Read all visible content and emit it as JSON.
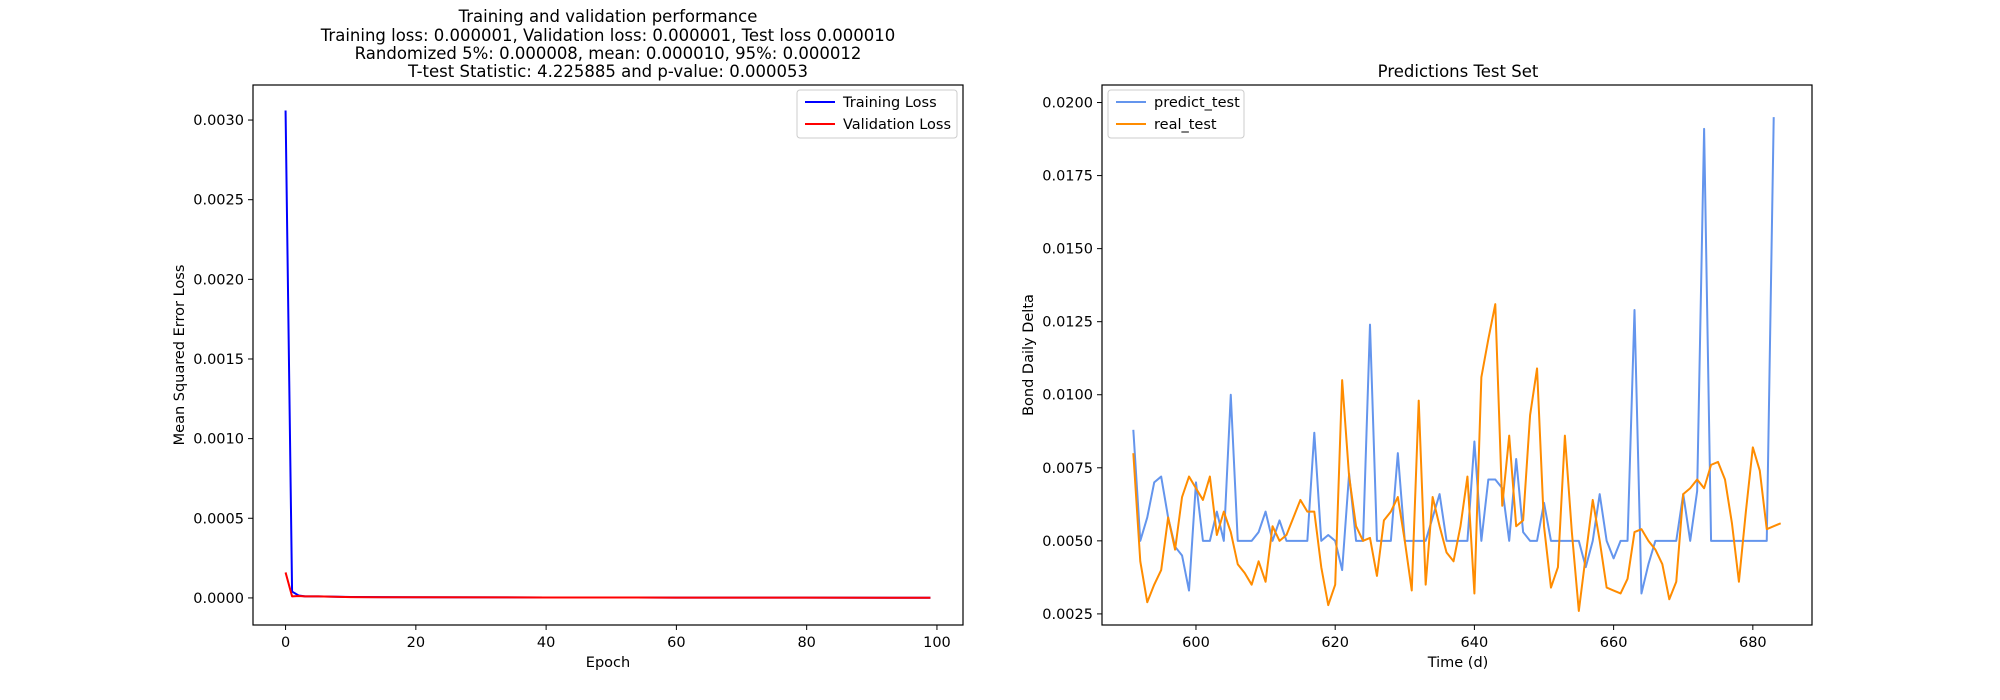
{
  "chart_data": [
    {
      "type": "line",
      "title_lines": [
        "Training and validation performance",
        "Training loss: 0.000001, Validation loss: 0.000001, Test loss 0.000010",
        "Randomized 5%: 0.000008, mean: 0.000010, 95%: 0.000012",
        "T-test Statistic: 4.225885 and p-value: 0.000053"
      ],
      "xlabel": "Epoch",
      "ylabel": "Mean Squared Error Loss",
      "xlim": [
        -5,
        104
      ],
      "ylim": [
        -0.00017,
        0.00322
      ],
      "xticks": [
        0,
        20,
        40,
        60,
        80,
        100
      ],
      "xtick_labels": [
        "0",
        "20",
        "40",
        "60",
        "80",
        "100"
      ],
      "yticks": [
        0.0,
        0.0005,
        0.001,
        0.0015,
        0.002,
        0.0025,
        0.003
      ],
      "ytick_labels": [
        "0.0000",
        "0.0005",
        "0.0010",
        "0.0015",
        "0.0020",
        "0.0025",
        "0.0030"
      ],
      "legend_position": "upper-right",
      "grid": false,
      "series": [
        {
          "name": "Training Loss",
          "color": "#0000ff",
          "x": [
            0,
            1,
            2,
            3,
            5,
            10,
            20,
            40,
            60,
            80,
            99
          ],
          "y": [
            0.00306,
            4e-05,
            1.5e-05,
            1e-05,
            1e-05,
            6e-06,
            4e-06,
            3e-06,
            2e-06,
            2e-06,
            1e-06
          ]
        },
        {
          "name": "Validation Loss",
          "color": "#ff0000",
          "x": [
            0,
            1,
            2,
            3,
            5,
            10,
            20,
            40,
            60,
            80,
            99
          ],
          "y": [
            0.00016,
            1e-05,
            1.2e-05,
            1e-05,
            1e-05,
            5e-06,
            4e-06,
            3e-06,
            2e-06,
            2e-06,
            1e-06
          ]
        }
      ]
    },
    {
      "type": "line",
      "title_lines": [
        "Predictions Test Set"
      ],
      "xlabel": "Time (d)",
      "ylabel": "Bond Daily Delta",
      "xlim": [
        586.5,
        688.5
      ],
      "ylim": [
        0.00212,
        0.0206
      ],
      "xticks": [
        600,
        620,
        640,
        660,
        680
      ],
      "xtick_labels": [
        "600",
        "620",
        "640",
        "660",
        "680"
      ],
      "yticks": [
        0.0025,
        0.005,
        0.0075,
        0.01,
        0.0125,
        0.015,
        0.0175,
        0.02
      ],
      "ytick_labels": [
        "0.0025",
        "0.0050",
        "0.0075",
        "0.0100",
        "0.0125",
        "0.0150",
        "0.0175",
        "0.0200"
      ],
      "legend_position": "upper-left",
      "grid": false,
      "x_start": 591,
      "series": [
        {
          "name": "predict_test",
          "color": "#6495ed",
          "values": [
            0.0088,
            0.005,
            0.0058,
            0.007,
            0.0072,
            0.0058,
            0.0048,
            0.0045,
            0.0033,
            0.007,
            0.005,
            0.005,
            0.006,
            0.005,
            0.01,
            0.005,
            0.005,
            0.005,
            0.0053,
            0.006,
            0.005,
            0.0057,
            0.005,
            0.005,
            0.005,
            0.005,
            0.0087,
            0.005,
            0.0052,
            0.005,
            0.004,
            0.0073,
            0.005,
            0.005,
            0.0124,
            0.005,
            0.005,
            0.005,
            0.008,
            0.005,
            0.005,
            0.005,
            0.005,
            0.0058,
            0.0066,
            0.005,
            0.005,
            0.005,
            0.005,
            0.0084,
            0.005,
            0.0071,
            0.0071,
            0.0068,
            0.005,
            0.0078,
            0.0053,
            0.005,
            0.005,
            0.0063,
            0.005,
            0.005,
            0.005,
            0.005,
            0.005,
            0.0041,
            0.005,
            0.0066,
            0.005,
            0.0044,
            0.005,
            0.005,
            0.0129,
            0.0032,
            0.0042,
            0.005,
            0.005,
            0.005,
            0.005,
            0.0066,
            0.005,
            0.0067,
            0.0191,
            0.005,
            0.005,
            0.005,
            0.005,
            0.005,
            0.005,
            0.005,
            0.005,
            0.005,
            0.0195
          ]
        },
        {
          "name": "real_test",
          "color": "#ff8c00",
          "values": [
            0.008,
            0.0043,
            0.0029,
            0.0035,
            0.004,
            0.0058,
            0.0047,
            0.0065,
            0.0072,
            0.0068,
            0.0064,
            0.0072,
            0.0052,
            0.006,
            0.0053,
            0.0042,
            0.0039,
            0.0035,
            0.0043,
            0.0036,
            0.0055,
            0.005,
            0.0052,
            0.0058,
            0.0064,
            0.006,
            0.006,
            0.0041,
            0.0028,
            0.0035,
            0.0105,
            0.0072,
            0.0055,
            0.005,
            0.0051,
            0.0038,
            0.0057,
            0.006,
            0.0065,
            0.005,
            0.0033,
            0.0098,
            0.0035,
            0.0065,
            0.0055,
            0.0046,
            0.0043,
            0.0055,
            0.0072,
            0.0032,
            0.0106,
            0.0119,
            0.0131,
            0.0062,
            0.0086,
            0.0055,
            0.0057,
            0.0093,
            0.0109,
            0.0055,
            0.0034,
            0.0041,
            0.0086,
            0.0053,
            0.0026,
            0.0045,
            0.0064,
            0.005,
            0.0034,
            0.0033,
            0.0032,
            0.0037,
            0.0053,
            0.0054,
            0.005,
            0.0047,
            0.0042,
            0.003,
            0.0036,
            0.0066,
            0.0068,
            0.0071,
            0.0068,
            0.0076,
            0.0077,
            0.0071,
            0.0056,
            0.0036,
            0.006,
            0.0082,
            0.0074,
            0.0054,
            0.0055,
            0.0056
          ]
        }
      ]
    }
  ]
}
